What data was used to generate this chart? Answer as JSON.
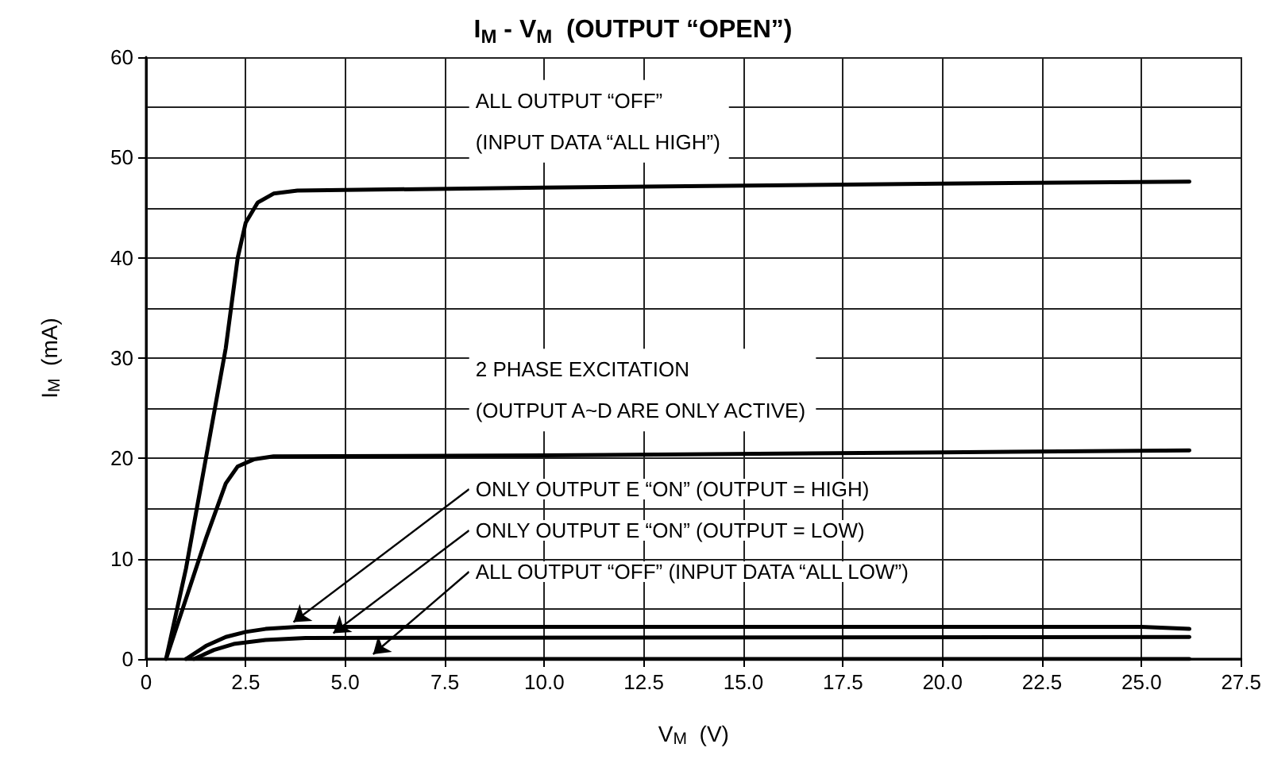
{
  "chart_data": {
    "type": "line",
    "title": "I$_{M}$ - V$_{M}$  (OUTPUT “OPEN”)",
    "xlabel": "V$_{M}$  (V)",
    "ylabel": "I$_{M}$  (mA)",
    "xlim": [
      0,
      27.5
    ],
    "xticks": [
      0,
      {
        "value": 2.5,
        "label": "2.5"
      },
      {
        "value": 5,
        "label": "5.0"
      },
      {
        "value": 7.5,
        "label": "7.5"
      },
      {
        "value": 10,
        "label": "10.0"
      },
      {
        "value": 12.5,
        "label": "12.5"
      },
      {
        "value": 15,
        "label": "15.0"
      },
      {
        "value": 17.5,
        "label": "17.5"
      },
      {
        "value": 20,
        "label": "20.0"
      },
      {
        "value": 22.5,
        "label": "22.5"
      },
      {
        "value": 25,
        "label": "25.0"
      },
      {
        "value": 27.5,
        "label": "27.5"
      }
    ],
    "ylim": [
      0,
      60
    ],
    "yticks": [
      0,
      10,
      20,
      30,
      40,
      50,
      60
    ],
    "grid": true,
    "legend": false,
    "marker": "none",
    "line_style": "solid",
    "series": [
      {
        "name": "ALL OUTPUT “OFF”\n(INPUT DATA “ALL HIGH”)",
        "color": "#000000",
        "x": [
          0.5,
          1.0,
          1.5,
          2.0,
          2.3,
          2.5,
          2.8,
          3.2,
          3.8,
          10,
          20,
          26.2
        ],
        "values": [
          0,
          9,
          20,
          31,
          40,
          43.5,
          45.5,
          46.4,
          46.7,
          47,
          47.4,
          47.6
        ]
      },
      {
        "name": "2 PHASE EXCITATION\n(OUTPUT A~D ARE ONLY ACTIVE)",
        "color": "#000000",
        "x": [
          0.5,
          1.0,
          1.5,
          2.0,
          2.3,
          2.7,
          3.2,
          10,
          20,
          26.2
        ],
        "values": [
          0,
          6,
          12,
          17.5,
          19.2,
          19.9,
          20.2,
          20.3,
          20.6,
          20.8
        ]
      },
      {
        "color": "#000000",
        "x": [
          1.0,
          1.5,
          2.0,
          2.5,
          3.0,
          3.8,
          25,
          26.2
        ],
        "values": [
          0,
          1.3,
          2.2,
          2.7,
          3.0,
          3.2,
          3.2,
          3.0
        ]
      },
      {
        "color": "#000000",
        "x": [
          1.2,
          1.7,
          2.2,
          3.0,
          4.0,
          26.2
        ],
        "values": [
          0,
          0.9,
          1.5,
          1.9,
          2.1,
          2.2
        ]
      },
      {
        "color": "#000000",
        "x": [
          1.0,
          26.2
        ],
        "values": [
          0,
          0
        ]
      }
    ],
    "annotations": [
      {
        "text": "ONLY OUTPUT E “ON” (OUTPUT = HIGH)",
        "x": 3.7,
        "y": 3.2
      },
      {
        "text": "ONLY OUTPUT E “ON” (OUTPUT = LOW)",
        "x": 4.7,
        "y": 2.1
      },
      {
        "text": "ALL OUTPUT “OFF” (INPUT DATA “ALL LOW”)",
        "x": 5.7,
        "y": 0
      }
    ]
  }
}
